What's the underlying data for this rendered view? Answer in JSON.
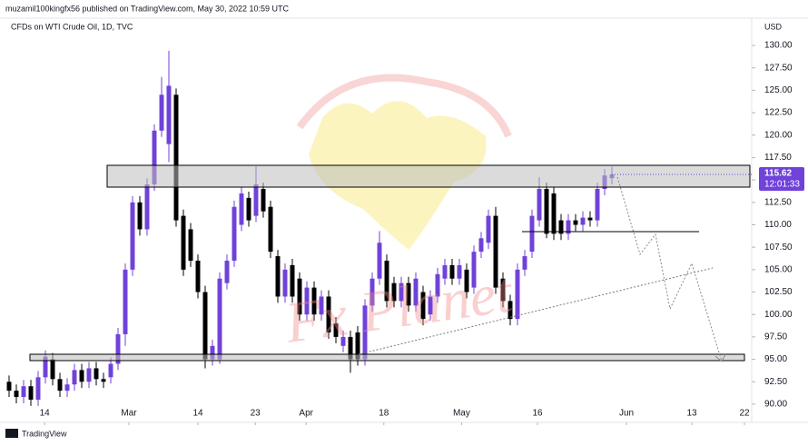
{
  "header": {
    "publisher": "muzamil100kingfx56 published on TradingView.com, May 30, 2022 10:59 UTC",
    "footer": "TradingView"
  },
  "chart_data": {
    "type": "candlestick",
    "title": "CFDs on WTI Crude Oil, 1D, TVC",
    "currency": "USD",
    "watermark": "Fx Planet",
    "up_color": "#6f42d9",
    "down_color": "#000000",
    "open": [
      92.5,
      91.5,
      90.8,
      92,
      90.5,
      93,
      95,
      92.8,
      91.5,
      92.2,
      93.8,
      92.5,
      94,
      92.8,
      93,
      94.5,
      97.8,
      105,
      112.5,
      109.5,
      114.5,
      120.5,
      119,
      124.5,
      111,
      109.5,
      106,
      102.5,
      95,
      95,
      103.5,
      106,
      110,
      113,
      111,
      114,
      112,
      106.5,
      102,
      105.5,
      104,
      100,
      103,
      100,
      102,
      99,
      96.5,
      97.5,
      98,
      95,
      101,
      104,
      106,
      103.5,
      101.5,
      103.5,
      101,
      102.5,
      100,
      102,
      104,
      105.5,
      104,
      105,
      103,
      107,
      108,
      111,
      104,
      101.5,
      99.5,
      105,
      107,
      110.5,
      114,
      113.5,
      110.5,
      109,
      110.5,
      110,
      110.8,
      110.5,
      114,
      115.2
    ],
    "high": [
      93.2,
      92.2,
      92.7,
      92.7,
      93.7,
      96,
      95.7,
      93.5,
      92.9,
      94.5,
      94.5,
      94.7,
      94.7,
      93.5,
      95.2,
      98.5,
      105.7,
      113.2,
      113.2,
      115.2,
      121.2,
      126.5,
      129.4,
      125.2,
      111.7,
      110.2,
      106.7,
      103.2,
      97.2,
      104.7,
      106.7,
      112.7,
      114.2,
      113.7,
      116.5,
      114.7,
      112.7,
      107.2,
      105.7,
      106.2,
      104.7,
      103.7,
      103.7,
      102.7,
      102.7,
      99.7,
      98.2,
      98.2,
      98.7,
      101.7,
      104.7,
      109.3,
      106.7,
      104.2,
      104.2,
      104.2,
      104.7,
      103.2,
      102.7,
      105.2,
      106.2,
      106.2,
      106.2,
      105.7,
      107.7,
      109.2,
      111.7,
      112,
      104.7,
      102.2,
      105.7,
      107.2,
      111.7,
      115.3,
      114.7,
      114.2,
      111.2,
      111.2,
      111.2,
      111.5,
      111.5,
      114.7,
      116.2,
      116.5
    ],
    "low": [
      90.8,
      90.1,
      90.1,
      89.8,
      89.8,
      92.3,
      92.1,
      90.8,
      90.8,
      91.5,
      91.8,
      91.8,
      92.1,
      91.8,
      92.3,
      93.8,
      96.5,
      104.3,
      108.8,
      108.8,
      113.8,
      119.8,
      117,
      109.8,
      104.3,
      105.3,
      101.8,
      94,
      94.3,
      94.5,
      102.8,
      105.3,
      109.3,
      109.8,
      110.3,
      110.8,
      106.3,
      101.3,
      101.3,
      101.3,
      99.3,
      99.3,
      99.3,
      99.3,
      97.3,
      96.8,
      95.8,
      93.5,
      94.3,
      94.3,
      100.3,
      103.3,
      100.8,
      100.8,
      100.8,
      100.3,
      100.3,
      98.8,
      99.3,
      101.3,
      103.3,
      103.3,
      103.3,
      101.8,
      102.3,
      106.3,
      107.3,
      102.3,
      100.8,
      98.8,
      98.8,
      104.3,
      106.3,
      109.8,
      108.5,
      108.3,
      108.3,
      108.3,
      109.3,
      109.3,
      109.8,
      109.8,
      113.3,
      114.5
    ],
    "close": [
      91.5,
      90.8,
      92,
      90.5,
      93,
      95.3,
      92.8,
      91.5,
      92.2,
      93.8,
      92.5,
      94,
      92.8,
      92.5,
      94.5,
      97.8,
      105,
      112.5,
      109.5,
      114.5,
      120.5,
      124.5,
      125.5,
      110.5,
      105,
      106,
      102.5,
      95,
      96.5,
      104,
      106,
      112,
      113.5,
      110.5,
      114.5,
      111.5,
      107,
      102,
      105,
      102,
      100,
      103,
      100,
      102,
      98,
      97.5,
      97.5,
      95,
      95,
      101,
      104,
      108,
      101.5,
      101.5,
      103.5,
      101,
      104,
      99.5,
      102,
      104.5,
      105.5,
      104,
      105.5,
      102.5,
      107,
      108.5,
      111,
      103,
      101.5,
      99.5,
      105,
      106.5,
      111,
      114,
      109,
      109,
      109,
      110.5,
      110,
      110.8,
      110.5,
      114,
      115.5,
      115.62
    ],
    "last_price": 115.62,
    "countdown": "12:01:33",
    "xlim": [
      -1.25,
      102.25
    ],
    "xticks": [
      {
        "value": 4.9,
        "label": "14"
      },
      {
        "value": 16.5,
        "label": "Mar"
      },
      {
        "value": 26,
        "label": "14"
      },
      {
        "value": 33.9,
        "label": "23"
      },
      {
        "value": 40.9,
        "label": "Apr"
      },
      {
        "value": 51.6,
        "label": "18"
      },
      {
        "value": 62.3,
        "label": "May"
      },
      {
        "value": 72.75,
        "label": "16"
      },
      {
        "value": 85,
        "label": "Jun"
      },
      {
        "value": 94,
        "label": "13"
      },
      {
        "value": 101.25,
        "label": "22"
      }
    ],
    "ylim": [
      87.97,
      133.04
    ],
    "yticks": [
      {
        "value": 90,
        "label": "90.00"
      },
      {
        "value": 92.5,
        "label": "92.50"
      },
      {
        "value": 95,
        "label": "95.00"
      },
      {
        "value": 97.5,
        "label": "97.50"
      },
      {
        "value": 100,
        "label": "100.00"
      },
      {
        "value": 102.5,
        "label": "102.50"
      },
      {
        "value": 105,
        "label": "105.00"
      },
      {
        "value": 107.5,
        "label": "107.50"
      },
      {
        "value": 110,
        "label": "110.00"
      },
      {
        "value": 112.5,
        "label": "112.50"
      },
      {
        "value": 115,
        "label": "115.00"
      },
      {
        "value": 117.5,
        "label": "117.50"
      },
      {
        "value": 120,
        "label": "120.00"
      },
      {
        "value": 122.5,
        "label": "122.50"
      },
      {
        "value": 125,
        "label": "125.00"
      },
      {
        "value": 127.5,
        "label": "127.50"
      },
      {
        "value": 130,
        "label": "130.00"
      }
    ]
  }
}
